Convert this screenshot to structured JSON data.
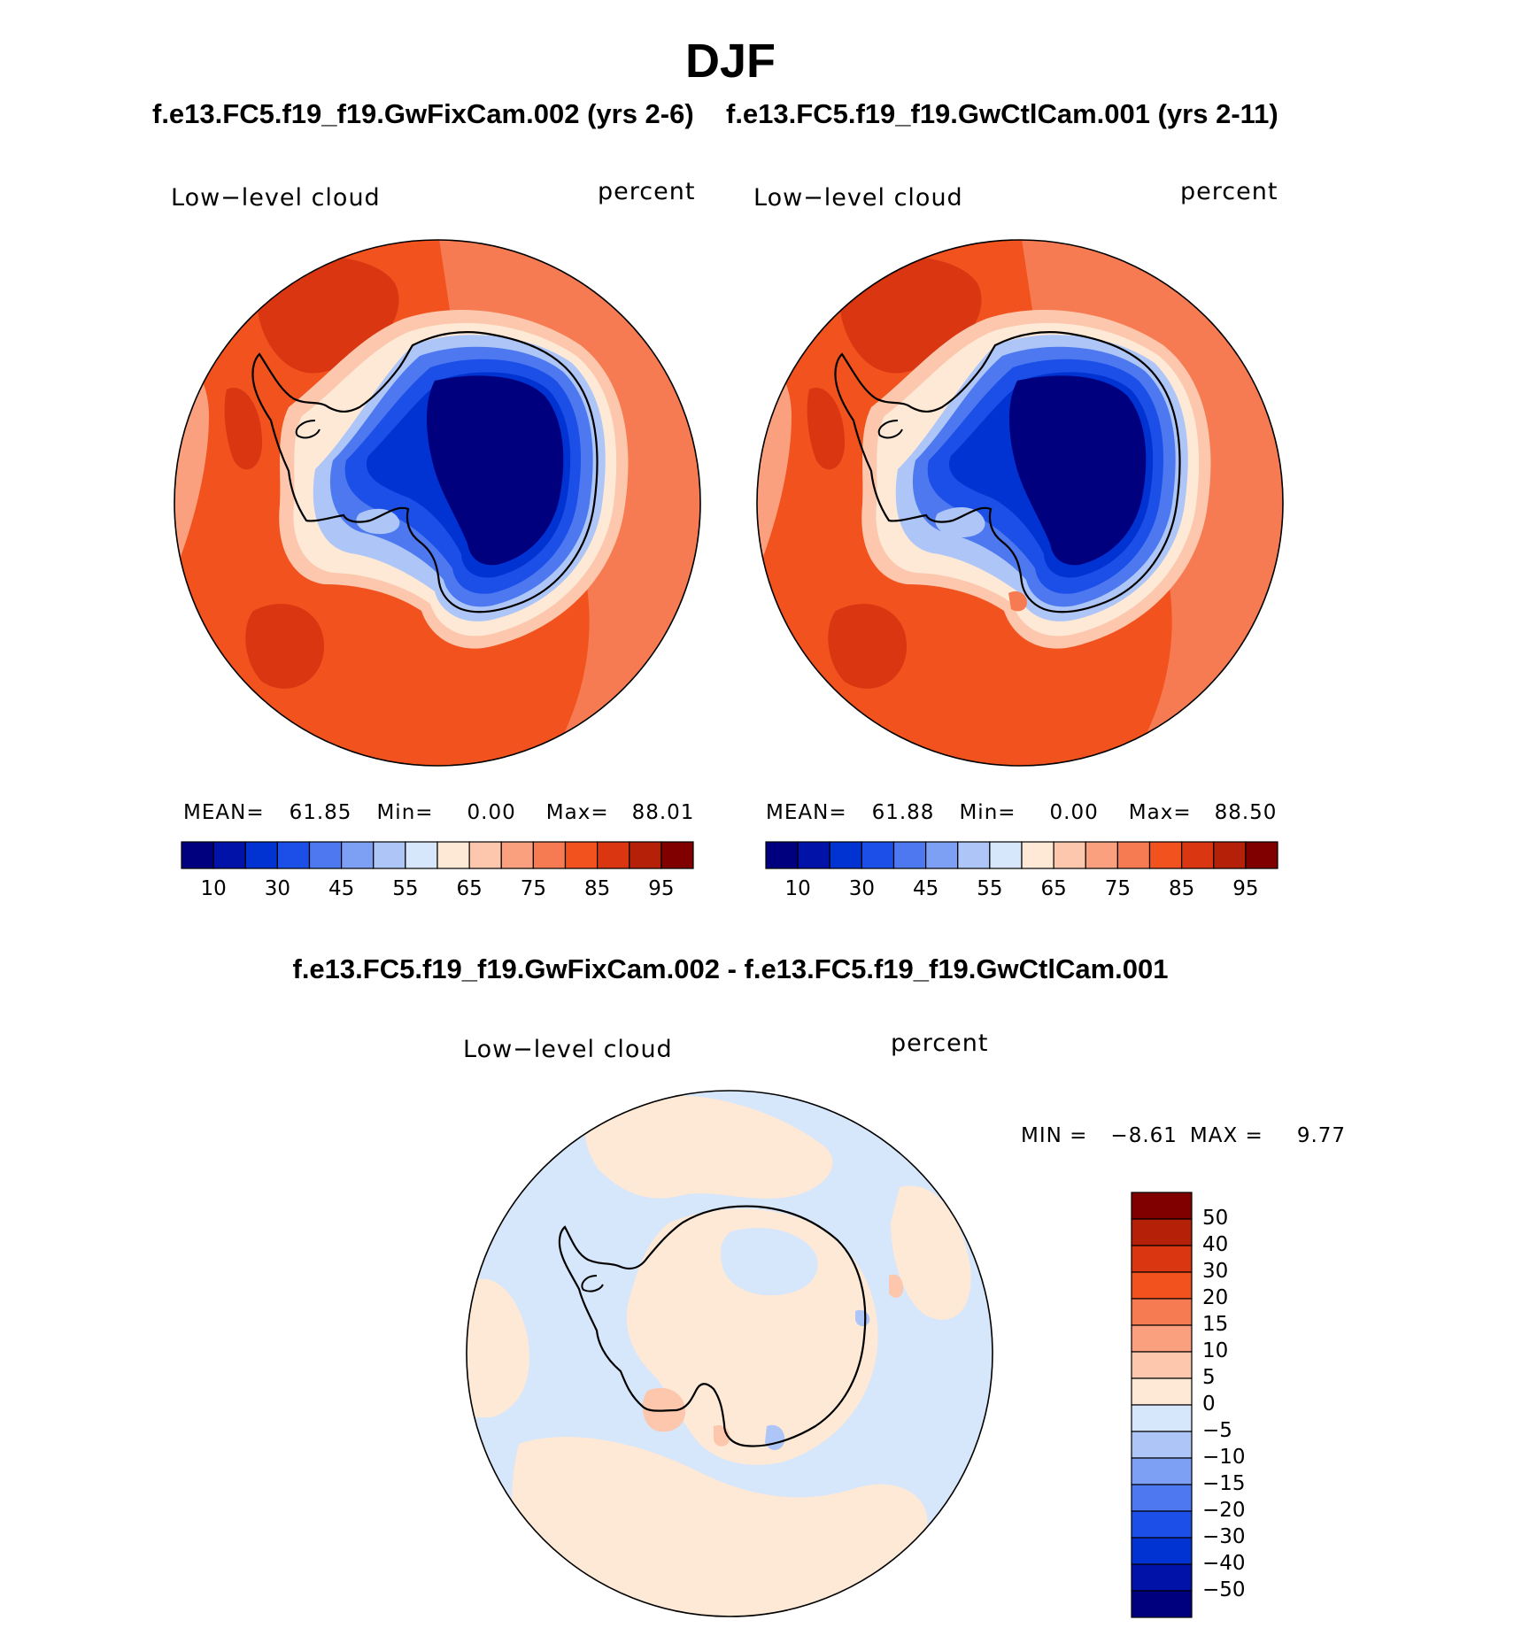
{
  "title": "DJF",
  "panel_titles": {
    "test": "f.e13.FC5.f19_f19.GwFixCam.002 (yrs 2-6)",
    "control": "f.e13.FC5.f19_f19.GwCtlCam.001 (yrs 2-11)",
    "diff": "f.e13.FC5.f19_f19.GwFixCam.002 - f.e13.FC5.f19_f19.GwCtlCam.001"
  },
  "panels": [
    {
      "id": "test",
      "field": "Low−level cloud",
      "units": "percent",
      "mean_label": "MEAN=",
      "mean": "61.85",
      "min_label": "Min=",
      "min": "0.00",
      "max_label": "Max=",
      "max": "88.01"
    },
    {
      "id": "control",
      "field": "Low−level cloud",
      "units": "percent",
      "mean_label": "MEAN=",
      "mean": "61.88",
      "min_label": "Min=",
      "min": "0.00",
      "max_label": "Max=",
      "max": "88.50"
    },
    {
      "id": "diff",
      "field": "Low−level cloud",
      "units": "percent",
      "min_label": "MIN =",
      "min": "−8.61",
      "max_label": "MAX =",
      "max": "9.77"
    }
  ],
  "colorbar_abs": {
    "colors": [
      "#00007e",
      "#0012a8",
      "#0033d1",
      "#1b4fe8",
      "#4d78ef",
      "#7ea0f4",
      "#adc6f7",
      "#d6e6fb",
      "#fde9d6",
      "#fcc7ac",
      "#faa07f",
      "#f77b52",
      "#f2521e",
      "#d93611",
      "#b52009",
      "#800000"
    ],
    "labels": [
      "10",
      "30",
      "45",
      "55",
      "65",
      "75",
      "85",
      "95"
    ]
  },
  "colorbar_diff": {
    "colors_top_to_bottom": [
      "#800000",
      "#b52009",
      "#d93611",
      "#f2521e",
      "#f77b52",
      "#faa07f",
      "#fcc7ac",
      "#fde9d6",
      "#d6e6fb",
      "#adc6f7",
      "#7ea0f4",
      "#4d78ef",
      "#1b4fe8",
      "#0033d1",
      "#0012a8",
      "#00007e"
    ],
    "labels_top_to_bottom": [
      "50",
      "40",
      "30",
      "20",
      "15",
      "10",
      "5",
      "0",
      "−5",
      "−10",
      "−15",
      "−20",
      "−30",
      "−40",
      "−50"
    ]
  },
  "map_colors": {
    "ocean_high": "#f2521e",
    "ocean_mid": "#f77b52",
    "ocean_max": "#d93611",
    "ocean_low": "#faa07f",
    "coast_1": "#fcc7ac",
    "coast_2": "#fde9d6",
    "ice_1": "#adc6f7",
    "ice_2": "#4d78ef",
    "ice_3": "#1b4fe8",
    "ice_4": "#0033d1",
    "ice_core": "#00007e",
    "diff_pos": "#fde9d6",
    "diff_neg": "#d6e6fb",
    "diff_neg2": "#adc6f7",
    "diff_pos2": "#fcc7ac"
  }
}
